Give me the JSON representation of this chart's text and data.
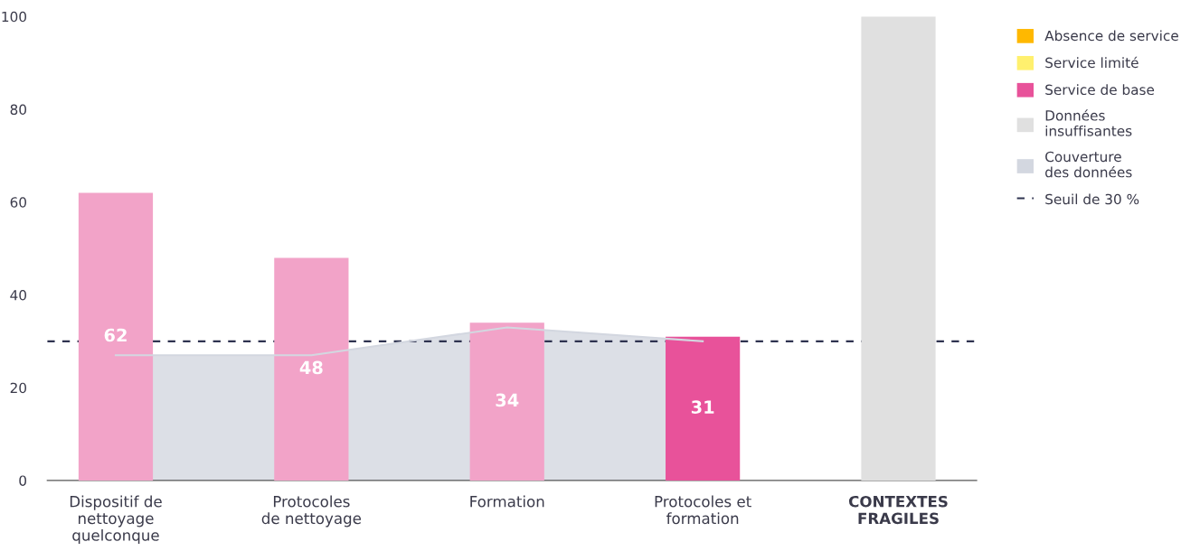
{
  "chart_data": {
    "type": "bar",
    "categories": [
      "Dispositif de\nnettoyage\nquelconque",
      "Protocoles\nde nettoyage",
      "Formation",
      "Protocoles et\nformation",
      "CONTEXTES\nFRAGILES"
    ],
    "series": [
      {
        "name": "Absence de service",
        "color": "#ffb800",
        "values": [
          null,
          null,
          null,
          null,
          null
        ]
      },
      {
        "name": "Service limité",
        "color": "#fff06e",
        "values": [
          null,
          null,
          null,
          null,
          null
        ]
      },
      {
        "name": "Service de base",
        "color": "#e8529a",
        "colors": [
          "#f2a3c8",
          "#f2a3c8",
          "#f2a3c8",
          "#e8529a",
          "#e8529a"
        ],
        "values": [
          62,
          48,
          34,
          31,
          null
        ],
        "value_labels": [
          "62",
          "48",
          "34",
          "31",
          null
        ]
      },
      {
        "name": "Données\ninsuffisantes",
        "color": "#e0e0e0",
        "values": [
          null,
          null,
          null,
          null,
          100
        ]
      },
      {
        "name": "Couverture\ndes données",
        "type": "area",
        "color": "#d3d7e0",
        "values": [
          27,
          27,
          33,
          30,
          null
        ]
      }
    ],
    "ylim": [
      0,
      100
    ],
    "yticks": [
      0,
      20,
      40,
      60,
      80,
      100
    ],
    "ref_lines": [
      {
        "axis": "y",
        "value": 30,
        "label": "Seuil de 30 %",
        "color": "#2f3350",
        "line_style": "dashed"
      }
    ],
    "legend": "top right",
    "grid": false
  }
}
